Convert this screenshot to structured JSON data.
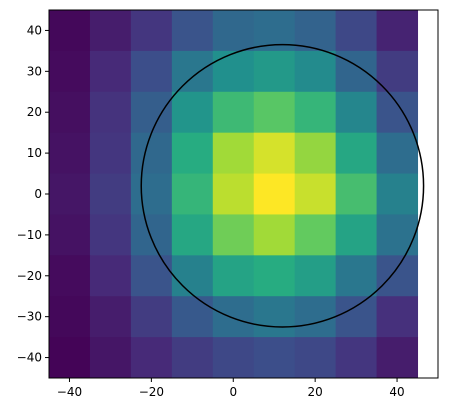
{
  "chart_data": {
    "type": "heatmap",
    "title": "",
    "xlabel": "",
    "ylabel": "",
    "xlim": [
      -45,
      50
    ],
    "ylim": [
      -45,
      45
    ],
    "x_ticks": [
      -40,
      -20,
      0,
      20,
      40
    ],
    "y_ticks": [
      -40,
      -30,
      -20,
      -10,
      0,
      10,
      20,
      30,
      40
    ],
    "x_tick_labels": [
      "−40",
      "−20",
      "0",
      "20",
      "40"
    ],
    "y_tick_labels": [
      "−40",
      "−30",
      "−20",
      "−10",
      "0",
      "10",
      "20",
      "30",
      "40"
    ],
    "grid": false,
    "colormap": "viridis",
    "cell_size": 10,
    "x_edges": [
      -45,
      -35,
      -25,
      -15,
      -5,
      5,
      15,
      25,
      35,
      45
    ],
    "y_edges": [
      -45,
      -35,
      -25,
      -15,
      -5,
      5,
      15,
      25,
      35,
      45
    ],
    "values_rows_top_to_bottom": [
      [
        0.02,
        0.08,
        0.16,
        0.26,
        0.34,
        0.36,
        0.32,
        0.22,
        0.1
      ],
      [
        0.03,
        0.12,
        0.24,
        0.4,
        0.5,
        0.54,
        0.48,
        0.33,
        0.18
      ],
      [
        0.04,
        0.15,
        0.3,
        0.52,
        0.68,
        0.74,
        0.66,
        0.46,
        0.26
      ],
      [
        0.05,
        0.16,
        0.34,
        0.62,
        0.86,
        0.94,
        0.84,
        0.6,
        0.36
      ],
      [
        0.06,
        0.18,
        0.36,
        0.66,
        0.9,
        1.0,
        0.92,
        0.7,
        0.44
      ],
      [
        0.05,
        0.16,
        0.33,
        0.6,
        0.78,
        0.86,
        0.76,
        0.58,
        0.38
      ],
      [
        0.03,
        0.12,
        0.26,
        0.44,
        0.58,
        0.62,
        0.56,
        0.4,
        0.26
      ],
      [
        0.02,
        0.08,
        0.18,
        0.28,
        0.36,
        0.4,
        0.36,
        0.26,
        0.14
      ],
      [
        0.01,
        0.06,
        0.12,
        0.18,
        0.22,
        0.24,
        0.22,
        0.16,
        0.08
      ]
    ],
    "overlay_circle": {
      "center": [
        12,
        2
      ],
      "radius": 34.5,
      "color": "#000000"
    }
  }
}
